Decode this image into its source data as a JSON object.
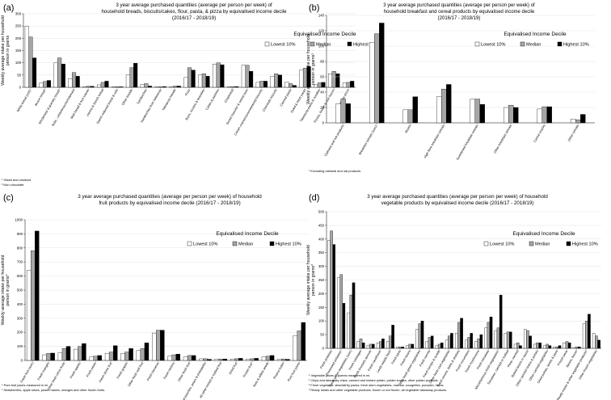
{
  "colors": {
    "lowest": "#ffffff",
    "median": "#a6a6a6",
    "highest": "#000000",
    "stroke": "#000000",
    "grid": "#dcdcdc"
  },
  "chart_data": [
    {
      "label": "(a)",
      "type": "bar",
      "title": [
        "3 year average purchased quantities (average per person per week) of",
        "household breads, biscuits/cakes, flour, pasta, & pizza by equivalised income decile",
        "(2016/17 - 2018/19)"
      ],
      "ylabel": [
        "Weekly average intake per household",
        "person in grams"
      ],
      "ylim": [
        0,
        300
      ],
      "yticks": [
        0,
        50,
        100,
        150,
        200,
        250,
        300
      ],
      "legend_title": "Equivalised Income Decile",
      "legend": [
        "Lowest 10%",
        "Median",
        "Highest 10%"
      ],
      "categories": [
        "White bread (unit)¹",
        "Brown bread¹",
        "Wholemeal & granary bread¹",
        "Rolls - white/brown/wholemeal",
        "Malt bread & fruit loaves",
        "Vienna & french bread",
        "Starch reduced bread & rolls",
        "Other breads",
        "Sandwiches",
        "Sandwiches from takeaway",
        "Takeaway breads",
        "Flour",
        "Buns, scones & teacakes",
        "Cakes & pastries",
        "Crispbread",
        "Sweet biscuits² & cereal bars",
        "Cream crackers/unsweetened biscuits",
        "Chocolate biscuits",
        "Canned pasta",
        "Dried & fresh pasta",
        "Takeaway pasta & noodles",
        "Pizzas, frozen & non frozen",
        "Takeaway pizza"
      ],
      "series": [
        {
          "name": "Lowest 10%",
          "values": [
            250,
            18,
            100,
            35,
            3,
            10,
            2,
            50,
            12,
            2,
            3,
            40,
            50,
            95,
            2,
            90,
            20,
            45,
            22,
            70,
            10,
            55,
            18
          ]
        },
        {
          "name": "Median",
          "values": [
            205,
            24,
            120,
            60,
            4,
            20,
            2,
            80,
            15,
            2,
            5,
            80,
            55,
            100,
            3,
            90,
            25,
            55,
            15,
            78,
            18,
            65,
            20
          ]
        },
        {
          "name": "Highest 10%",
          "values": [
            120,
            28,
            95,
            45,
            4,
            25,
            2,
            98,
            5,
            3,
            5,
            70,
            45,
            92,
            3,
            65,
            25,
            50,
            8,
            85,
            20,
            55,
            25
          ]
        }
      ],
      "footnotes": [
        "¹ Sliced and unsliced",
        "² Non-chocolate"
      ]
    },
    {
      "label": "(b)",
      "type": "bar",
      "title": [
        "3 year average purchased quantities (average per person per week) of",
        "household breakfast and cereal products by equivalised income decile",
        "(2016/17 - 2018/19)"
      ],
      "ylabel": [
        "Weekly average intake per household",
        "person in grams¹"
      ],
      "ylim": [
        0,
        140
      ],
      "yticks": [
        0,
        20,
        40,
        60,
        80,
        100,
        120,
        140
      ],
      "legend_title": "Equivalised Income Decile",
      "legend": [
        "Lowest 10%",
        "Median",
        "Highest 10%"
      ],
      "categories": [
        "Oatmeal and oat products",
        "Breakfast cereals (sum)¹",
        "Muesli",
        "High fibre breakfast cereals",
        "Sweetened breakfast cereals",
        "Other breakfast cereals",
        "Cereal snacks",
        "Other cereals"
      ],
      "series": [
        {
          "name": "Lowest 10%",
          "values": [
            25,
            105,
            17,
            34,
            31,
            20,
            18,
            5
          ]
        },
        {
          "name": "Median",
          "values": [
            31,
            116,
            17,
            44,
            31,
            23,
            21,
            4
          ]
        },
        {
          "name": "Highest 10%",
          "values": [
            25,
            130,
            34,
            50,
            24,
            20,
            21,
            11
          ]
        }
      ],
      "footnotes": [
        "¹ Excluding oatmeal and oat products"
      ]
    },
    {
      "label": "(c)",
      "type": "bar",
      "title": [
        "3 year average purchased quantities (average per person per week) of household",
        "fruit products by equivalised income decile (2016/17 - 2018/19)"
      ],
      "ylabel": [
        "Weekly average intake per household",
        "person in grams*"
      ],
      "ylim": [
        0,
        1000
      ],
      "yticks": [
        0,
        100,
        200,
        300,
        400,
        500,
        600,
        700,
        800,
        900,
        1000
      ],
      "legend_title": "Equivalised Income Decile",
      "legend": [
        "Lowest 10%",
        "Median",
        "Highest 10%"
      ],
      "categories": [
        "Fresh fruit (sum)",
        "Fresh oranges",
        "Other fresh citrus fruits",
        "Fresh apples",
        "Fresh pears",
        "Fresh stone fruit",
        "Fresh grapes",
        "Other fresh soft fruit",
        "Fresh bananas",
        "Fresh melons",
        "Other fresh fruit",
        "Tinned peaches, pears & pineapples",
        "All other tinned or bottled fruit",
        "Dried fruit",
        "Frozen fruit¹",
        "Nuts & edible seeds",
        "Peanut butter",
        "Pure fruit juices"
      ],
      "series": [
        {
          "name": "Lowest 10%",
          "values": [
            640,
            40,
            55,
            80,
            25,
            50,
            50,
            70,
            195,
            30,
            25,
            12,
            8,
            10,
            10,
            25,
            8,
            175
          ]
        },
        {
          "name": "Median",
          "values": [
            780,
            50,
            85,
            100,
            30,
            60,
            60,
            85,
            215,
            40,
            35,
            12,
            10,
            12,
            12,
            30,
            10,
            210
          ]
        },
        {
          "name": "Highest 10%",
          "values": [
            920,
            52,
            100,
            120,
            35,
            105,
            85,
            125,
            215,
            45,
            35,
            8,
            10,
            15,
            15,
            35,
            8,
            270
          ]
        }
      ],
      "footnotes": [
        "* Pure fruit juices measured in ml",
        "¹ Strawberries, apple slices, peach halves, oranges and other frozen fruits."
      ]
    },
    {
      "label": "(d)",
      "type": "bar",
      "title": [
        "3 year average purchased quantities (average per person per week) of household",
        "vegetable products by equivalised income decile (2016/17 - 2018/19)"
      ],
      "ylabel": [
        "Weekly average intake per household",
        "person in grams*"
      ],
      "ylim": [
        0,
        500
      ],
      "yticks": [
        0,
        50,
        100,
        150,
        200,
        250,
        300,
        350,
        400,
        450,
        500
      ],
      "legend_title": "Equivalised Income Decile",
      "legend": [
        "Lowest 10%",
        "Median",
        "Highest 10%"
      ],
      "categories": [
        "Fresh potatoes",
        "Processed potatoes¹",
        "Fresh green vegetables (sum)",
        "Fresh cabbages",
        "Fresh brussels sprouts",
        "Fresh cauliflower",
        "Leafy salads fresh",
        "Fresh peas",
        "Fresh beans",
        "Other fresh green vegetables",
        "Fresh carrots",
        "Fresh turnips & swede",
        "Other fresh root vegetables",
        "Fresh onions, leeks & shallots",
        "Fresh cucumbers",
        "Fresh mushrooms",
        "Fresh tomatoes",
        "Miscellaneous fresh vegetables²",
        "Tomatoes, canned or bottled",
        "Peas, canned",
        "Baked beans in sauce",
        "Other canned beans & pulses",
        "Other canned vegetables",
        "Dried pulses, lentils & peas",
        "Frozen peas",
        "Beans, frozen",
        "Ready meals & other vegetable products³",
        "Other frozen vegetables"
      ],
      "series": [
        {
          "name": "Lowest 10%",
          "values": [
            395,
            260,
            130,
            25,
            10,
            20,
            25,
            5,
            10,
            70,
            25,
            10,
            30,
            55,
            30,
            25,
            75,
            65,
            55,
            15,
            70,
            15,
            10,
            5,
            20,
            3,
            90,
            55
          ]
        },
        {
          "name": "Median",
          "values": [
            430,
            270,
            195,
            35,
            15,
            25,
            45,
            5,
            15,
            90,
            40,
            15,
            45,
            95,
            40,
            35,
            95,
            75,
            60,
            20,
            65,
            20,
            15,
            5,
            25,
            5,
            100,
            45
          ]
        },
        {
          "name": "Highest 10%",
          "values": [
            380,
            165,
            240,
            20,
            15,
            35,
            85,
            5,
            15,
            100,
            45,
            20,
            55,
            110,
            55,
            50,
            115,
            195,
            60,
            10,
            45,
            20,
            10,
            10,
            20,
            5,
            125,
            30
          ]
        }
      ],
      "footnotes": [
        "* Vegetable juices & purees measured in ml.",
        "¹ Chips and takeaway chips, canned and instant potato, potato snacks, other potato products.",
        "² Fresh vegetable: stew/stirfry packs; fresh stem vegetables, marrow, courgettes, pumpkin, herbs.",
        "³ Ready meals and other vegetable products, frozen or not frozen, all vegetable takeaway products."
      ]
    }
  ]
}
